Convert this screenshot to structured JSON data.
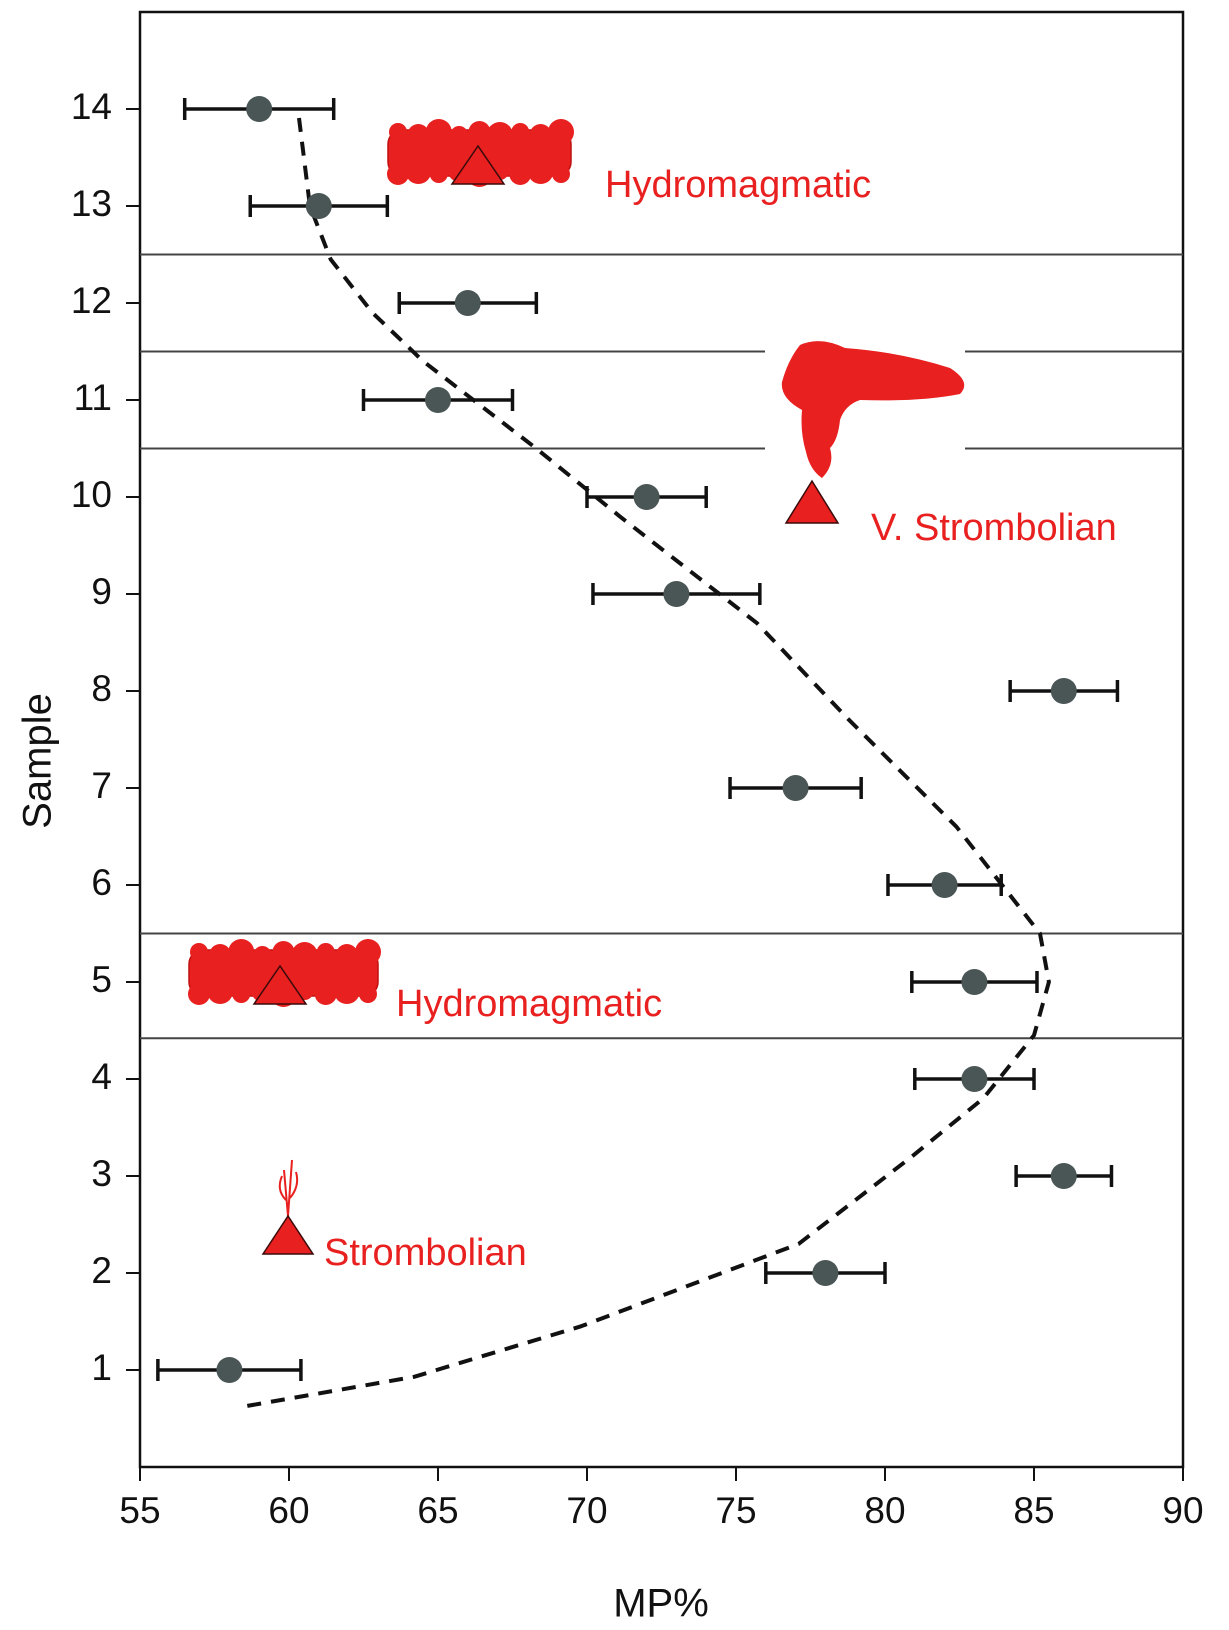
{
  "chart_data": {
    "type": "scatter",
    "x_label": "MP%",
    "y_label": "Sample",
    "xlim": [
      55,
      90
    ],
    "ylim": [
      0,
      15
    ],
    "xticks": [
      55,
      60,
      65,
      70,
      75,
      80,
      85,
      90
    ],
    "yticks": [
      1,
      2,
      3,
      4,
      5,
      6,
      7,
      8,
      9,
      10,
      11,
      12,
      13,
      14
    ],
    "series": [
      {
        "color": "#4a5556",
        "x": [
          58,
          78,
          86,
          83,
          83,
          82,
          77,
          86,
          73,
          72,
          65,
          66,
          61,
          59
        ],
        "y": [
          1,
          2,
          3,
          4,
          5,
          6,
          7,
          8,
          9,
          10,
          11,
          12,
          13,
          14
        ],
        "xerr": [
          2.4,
          2,
          1.6,
          2,
          2.1,
          1.9,
          2.2,
          1.8,
          2.8,
          2,
          2.5,
          2.3,
          2.3,
          2.5
        ]
      }
    ],
    "trend": {
      "x": [
        58.6,
        64.2,
        69.8,
        77.1,
        80.9,
        83.3,
        85,
        85.5,
        85.2,
        82.4,
        78.8,
        75.7,
        71.1,
        68.3,
        64.5,
        62.8,
        61.4,
        60.7,
        60.3
      ],
      "y": [
        0.63,
        0.93,
        1.45,
        2.3,
        3.2,
        3.8,
        4.45,
        5.0,
        5.5,
        6.6,
        7.7,
        8.7,
        9.8,
        10.5,
        11.4,
        11.9,
        12.45,
        13.0,
        14.0
      ]
    },
    "boundaries": [
      12.5,
      11.5,
      10.5,
      5.5,
      4.42
    ],
    "annotations": [
      "Hydromagmatic",
      "V. Strombolian",
      "Hydromagmatic",
      "Strombolian"
    ],
    "annotation_color": "#e8201f"
  }
}
